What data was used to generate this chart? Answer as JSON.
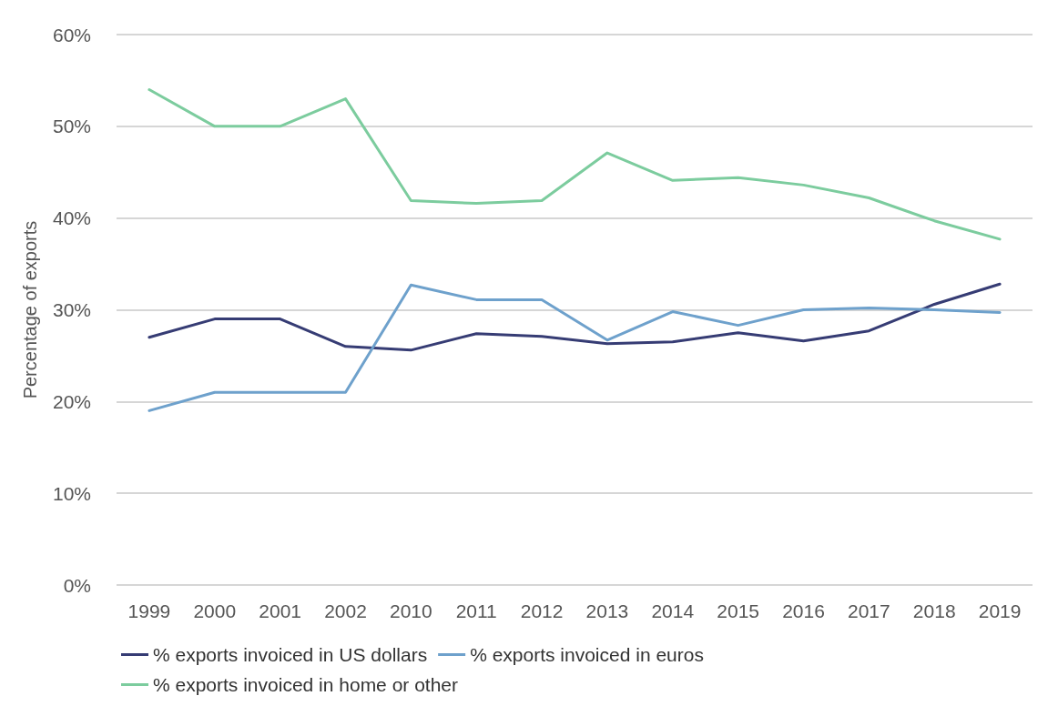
{
  "chart_data": {
    "type": "line",
    "ylabel": "Percentage of exports",
    "categories": [
      "1999",
      "2000",
      "2001",
      "2002",
      "2010",
      "2011",
      "2012",
      "2013",
      "2014",
      "2015",
      "2016",
      "2017",
      "2018",
      "2019"
    ],
    "series": [
      {
        "name": "% exports invoiced in US dollars",
        "color": "#363c74",
        "values": [
          27,
          29,
          29,
          26,
          25.6,
          27.4,
          27.1,
          26.3,
          26.5,
          27.5,
          26.6,
          27.7,
          30.6,
          32.8
        ]
      },
      {
        "name": "% exports invoiced in euros",
        "color": "#6ea1cc",
        "values": [
          19,
          21,
          21,
          21,
          32.7,
          31.1,
          31.1,
          26.7,
          29.8,
          28.3,
          30,
          30.2,
          30,
          29.7
        ]
      },
      {
        "name": "% exports invoiced in home or other",
        "color": "#7ccc9e",
        "values": [
          54,
          50,
          50,
          53,
          41.9,
          41.6,
          41.9,
          47.1,
          44.1,
          44.4,
          43.6,
          42.2,
          39.7,
          37.7
        ]
      }
    ],
    "ylim": [
      0,
      60
    ],
    "yticks": [
      {
        "value": 0,
        "label": "0%"
      },
      {
        "value": 10,
        "label": "10%"
      },
      {
        "value": 20,
        "label": "20%"
      },
      {
        "value": 30,
        "label": "30%"
      },
      {
        "value": 40,
        "label": "40%"
      },
      {
        "value": 50,
        "label": "50%"
      },
      {
        "value": 60,
        "label": "60%"
      }
    ],
    "grid": "y",
    "legend": "bottom",
    "marker": "none",
    "line_style": "solid"
  }
}
